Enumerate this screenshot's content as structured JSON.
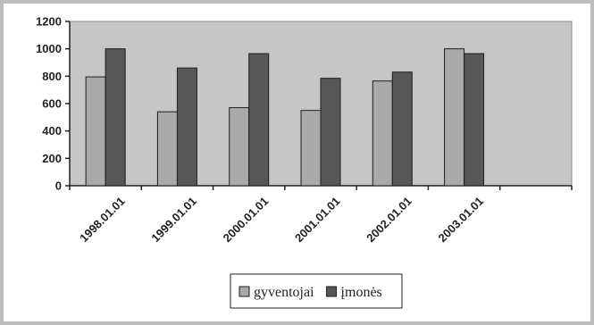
{
  "chart_data": {
    "type": "bar",
    "categories": [
      "1998.01.01",
      "1999.01.01",
      "2000.01.01",
      "2001.01.01",
      "2002.01.01",
      "2003.01.01",
      ""
    ],
    "series": [
      {
        "name": "gyventojai",
        "values": [
          795,
          540,
          570,
          550,
          765,
          1000,
          null
        ]
      },
      {
        "name": "įmonės",
        "values": [
          1000,
          860,
          965,
          785,
          830,
          965,
          null
        ]
      }
    ],
    "title": "",
    "xlabel": "",
    "ylabel": "",
    "ylim": [
      0,
      1200
    ],
    "yticks": [
      0,
      200,
      400,
      600,
      800,
      1000,
      1200
    ],
    "grid": false,
    "legend_position": "bottom",
    "colors": {
      "plot_background": "#c6c6c6",
      "gyventojai": "#a9a9a9",
      "įmonės": "#575757",
      "frame": "#bdbdbd"
    }
  }
}
